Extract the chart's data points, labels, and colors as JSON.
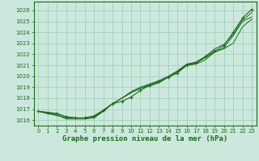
{
  "xlabel": "Graphe pression niveau de la mer (hPa)",
  "x": [
    0,
    1,
    2,
    3,
    4,
    5,
    6,
    7,
    8,
    9,
    10,
    11,
    12,
    13,
    14,
    15,
    16,
    17,
    18,
    19,
    20,
    21,
    22,
    23
  ],
  "line1": [
    1016.8,
    1016.7,
    1016.6,
    1016.3,
    1016.2,
    1016.2,
    1016.3,
    1016.9,
    1017.5,
    1017.7,
    1018.1,
    1018.7,
    1019.2,
    1019.5,
    1019.9,
    1020.3,
    1021.0,
    1021.2,
    1021.8,
    1022.3,
    1022.8,
    1024.0,
    1025.3,
    1026.1
  ],
  "line2": [
    1016.8,
    1016.6,
    1016.5,
    1016.1,
    1016.1,
    1016.1,
    1016.2,
    1016.8,
    1017.5,
    1018.0,
    1018.5,
    1018.9,
    1019.1,
    1019.4,
    1019.9,
    1020.4,
    1021.0,
    1021.1,
    1021.5,
    1022.2,
    1022.5,
    1023.0,
    1024.5,
    1025.2
  ],
  "line3": [
    1016.8,
    1016.6,
    1016.4,
    1016.2,
    1016.2,
    1016.2,
    1016.3,
    1016.8,
    1017.5,
    1018.0,
    1018.5,
    1018.9,
    1019.2,
    1019.5,
    1019.9,
    1020.4,
    1021.1,
    1021.2,
    1021.7,
    1022.2,
    1022.6,
    1023.7,
    1025.0,
    1025.4
  ],
  "line4": [
    1016.8,
    1016.7,
    1016.6,
    1016.3,
    1016.2,
    1016.2,
    1016.4,
    1016.9,
    1017.5,
    1018.0,
    1018.6,
    1019.0,
    1019.3,
    1019.6,
    1020.0,
    1020.5,
    1021.1,
    1021.3,
    1021.8,
    1022.5,
    1022.9,
    1023.8,
    1025.1,
    1025.8
  ],
  "line_color": "#1a6b1a",
  "bg_color": "#cce8dc",
  "grid_color": "#99ccb3",
  "axis_color": "#1a6b1a",
  "ylim_min": 1015.5,
  "ylim_max": 1026.8,
  "xlim_min": -0.5,
  "xlim_max": 23.5,
  "yticks": [
    1016,
    1017,
    1018,
    1019,
    1020,
    1021,
    1022,
    1023,
    1024,
    1025,
    1026
  ],
  "xticks": [
    0,
    1,
    2,
    3,
    4,
    5,
    6,
    7,
    8,
    9,
    10,
    11,
    12,
    13,
    14,
    15,
    16,
    17,
    18,
    19,
    20,
    21,
    22,
    23
  ],
  "tick_fontsize": 5.0,
  "label_fontsize": 6.5
}
